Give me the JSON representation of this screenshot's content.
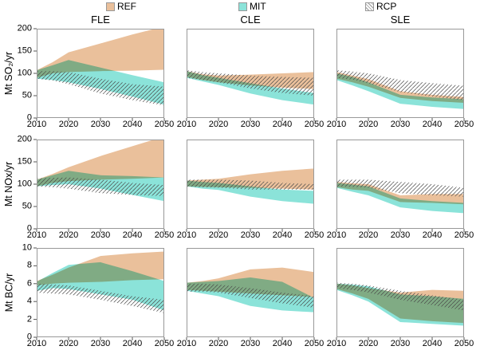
{
  "legend": [
    {
      "label": "REF",
      "swatch": "ref-filled-tan"
    },
    {
      "label": "MIT",
      "swatch": "mit-filled-cyan"
    },
    {
      "label": "RCP",
      "swatch": "rcp-hatched"
    }
  ],
  "columns": [
    "FLE",
    "CLE",
    "SLE"
  ],
  "rows": [
    {
      "ylabel": "Mt SO₂/yr",
      "ylim": [
        0,
        200
      ],
      "yticks": [
        0,
        50,
        100,
        150,
        200
      ]
    },
    {
      "ylabel": "Mt NOx/yr",
      "ylim": [
        0,
        200
      ],
      "yticks": [
        0,
        50,
        100,
        150,
        200
      ]
    },
    {
      "ylabel": "Mt BC/yr",
      "ylim": [
        0,
        10
      ],
      "yticks": [
        0,
        2,
        4,
        6,
        8,
        10
      ]
    }
  ],
  "xticks": [
    2010,
    2020,
    2030,
    2040,
    2050
  ],
  "colors": {
    "ref": "#EAC09B",
    "mit": "#8BE3D9",
    "overlap_appearance": "#7CBFA0",
    "hatch_line": "#4a4a4a",
    "panel_border": "#999999",
    "tick": "#555555"
  },
  "chart_data": [
    {
      "id": "so2-fle",
      "type": "area",
      "row_label": "Mt SO₂/yr",
      "column": "FLE",
      "ylim": [
        0,
        200
      ],
      "x": [
        2010,
        2015,
        2020,
        2030,
        2040,
        2050
      ],
      "bands": [
        {
          "name": "REF",
          "upper": [
            107,
            125,
            147,
            167,
            187,
            205
          ],
          "lower": [
            90,
            100,
            103,
            105,
            106,
            108
          ]
        },
        {
          "name": "MIT",
          "upper": [
            107,
            118,
            130,
            113,
            96,
            80
          ],
          "lower": [
            88,
            85,
            80,
            65,
            48,
            30
          ]
        },
        {
          "name": "RCP",
          "upper": [
            105,
            105,
            103,
            88,
            76,
            70
          ],
          "lower": [
            88,
            84,
            76,
            55,
            40,
            28
          ]
        }
      ]
    },
    {
      "id": "so2-cle",
      "type": "area",
      "row_label": "Mt SO₂/yr",
      "column": "CLE",
      "ylim": [
        0,
        200
      ],
      "x": [
        2010,
        2015,
        2020,
        2030,
        2040,
        2050
      ],
      "bands": [
        {
          "name": "REF",
          "upper": [
            105,
            98,
            95,
            97,
            100,
            103
          ],
          "lower": [
            92,
            85,
            80,
            73,
            68,
            65
          ]
        },
        {
          "name": "MIT",
          "upper": [
            105,
            96,
            90,
            78,
            66,
            56
          ],
          "lower": [
            90,
            82,
            74,
            55,
            40,
            30
          ]
        },
        {
          "name": "RCP",
          "upper": [
            107,
            103,
            100,
            95,
            92,
            90
          ],
          "lower": [
            90,
            85,
            80,
            66,
            56,
            50
          ]
        }
      ]
    },
    {
      "id": "so2-sle",
      "type": "area",
      "row_label": "Mt SO₂/yr",
      "column": "SLE",
      "ylim": [
        0,
        200
      ],
      "x": [
        2010,
        2015,
        2020,
        2030,
        2040,
        2050
      ],
      "bands": [
        {
          "name": "REF",
          "upper": [
            103,
            95,
            87,
            60,
            52,
            47
          ],
          "lower": [
            88,
            80,
            70,
            45,
            38,
            34
          ]
        },
        {
          "name": "MIT",
          "upper": [
            100,
            92,
            80,
            52,
            46,
            42
          ],
          "lower": [
            85,
            73,
            60,
            32,
            25,
            20
          ]
        },
        {
          "name": "RCP",
          "upper": [
            107,
            104,
            100,
            85,
            78,
            72
          ],
          "lower": [
            90,
            86,
            78,
            58,
            48,
            40
          ]
        }
      ]
    },
    {
      "id": "nox-fle",
      "type": "area",
      "row_label": "Mt NOx/yr",
      "column": "FLE",
      "ylim": [
        0,
        200
      ],
      "x": [
        2010,
        2015,
        2020,
        2030,
        2040,
        2050
      ],
      "bands": [
        {
          "name": "REF",
          "upper": [
            110,
            123,
            138,
            163,
            185,
            207
          ],
          "lower": [
            95,
            103,
            107,
            110,
            112,
            115
          ]
        },
        {
          "name": "MIT",
          "upper": [
            110,
            120,
            130,
            120,
            118,
            115
          ],
          "lower": [
            95,
            98,
            100,
            90,
            76,
            62
          ]
        },
        {
          "name": "RCP",
          "upper": [
            113,
            114,
            115,
            110,
            103,
            98
          ],
          "lower": [
            95,
            93,
            90,
            80,
            76,
            73
          ]
        }
      ]
    },
    {
      "id": "nox-cle",
      "type": "area",
      "row_label": "Mt NOx/yr",
      "column": "CLE",
      "ylim": [
        0,
        200
      ],
      "x": [
        2010,
        2015,
        2020,
        2030,
        2040,
        2050
      ],
      "bands": [
        {
          "name": "REF",
          "upper": [
            108,
            110,
            112,
            122,
            130,
            135
          ],
          "lower": [
            95,
            94,
            93,
            92,
            90,
            88
          ]
        },
        {
          "name": "MIT",
          "upper": [
            108,
            105,
            103,
            95,
            88,
            85
          ],
          "lower": [
            95,
            90,
            87,
            72,
            62,
            56
          ]
        },
        {
          "name": "RCP",
          "upper": [
            110,
            110,
            110,
            108,
            103,
            100
          ],
          "lower": [
            95,
            93,
            92,
            88,
            88,
            88
          ]
        }
      ]
    },
    {
      "id": "nox-sle",
      "type": "area",
      "row_label": "Mt NOx/yr",
      "column": "SLE",
      "ylim": [
        0,
        200
      ],
      "x": [
        2010,
        2015,
        2020,
        2030,
        2040,
        2050
      ],
      "bands": [
        {
          "name": "REF",
          "upper": [
            105,
            102,
            100,
            75,
            78,
            78
          ],
          "lower": [
            93,
            88,
            85,
            60,
            58,
            55
          ]
        },
        {
          "name": "MIT",
          "upper": [
            103,
            99,
            95,
            68,
            62,
            58
          ],
          "lower": [
            92,
            83,
            75,
            48,
            40,
            35
          ]
        },
        {
          "name": "RCP",
          "upper": [
            110,
            110,
            110,
            105,
            100,
            92
          ],
          "lower": [
            95,
            94,
            92,
            80,
            75,
            72
          ]
        }
      ]
    },
    {
      "id": "bc-fle",
      "type": "area",
      "row_label": "Mt BC/yr",
      "column": "FLE",
      "ylim": [
        0,
        10
      ],
      "x": [
        2010,
        2015,
        2020,
        2030,
        2040,
        2050
      ],
      "bands": [
        {
          "name": "REF",
          "upper": [
            6.3,
            7.0,
            7.8,
            9.1,
            9.4,
            9.6
          ],
          "lower": [
            5.8,
            6.0,
            6.1,
            6.2,
            6.4,
            6.5
          ]
        },
        {
          "name": "MIT",
          "upper": [
            6.2,
            7.2,
            8.1,
            8.4,
            7.4,
            6.3
          ],
          "lower": [
            5.2,
            5.5,
            5.4,
            4.8,
            4.2,
            3.0
          ]
        },
        {
          "name": "RCP",
          "upper": [
            6.0,
            5.9,
            5.8,
            5.2,
            4.6,
            4.2
          ],
          "lower": [
            5.0,
            4.9,
            4.8,
            4.2,
            3.5,
            2.7
          ]
        }
      ]
    },
    {
      "id": "bc-cle",
      "type": "area",
      "row_label": "Mt BC/yr",
      "column": "CLE",
      "ylim": [
        0,
        10
      ],
      "x": [
        2010,
        2015,
        2020,
        2030,
        2040,
        2050
      ],
      "bands": [
        {
          "name": "REF",
          "upper": [
            6.1,
            6.3,
            6.6,
            7.6,
            7.8,
            7.3
          ],
          "lower": [
            5.3,
            5.2,
            5.1,
            4.9,
            4.7,
            4.5
          ]
        },
        {
          "name": "MIT",
          "upper": [
            6.1,
            6.2,
            6.3,
            6.7,
            6.2,
            4.4
          ],
          "lower": [
            5.2,
            4.9,
            4.6,
            3.5,
            3.0,
            2.8
          ]
        },
        {
          "name": "RCP",
          "upper": [
            6.0,
            6.0,
            5.9,
            5.5,
            5.0,
            4.6
          ],
          "lower": [
            5.1,
            5.1,
            5.0,
            4.4,
            3.8,
            3.3
          ]
        }
      ]
    },
    {
      "id": "bc-sle",
      "type": "area",
      "row_label": "Mt BC/yr",
      "column": "SLE",
      "ylim": [
        0,
        10
      ],
      "x": [
        2010,
        2015,
        2020,
        2030,
        2040,
        2050
      ],
      "bands": [
        {
          "name": "REF",
          "upper": [
            6.0,
            5.8,
            5.5,
            5.0,
            5.3,
            5.2
          ],
          "lower": [
            5.4,
            4.9,
            4.3,
            2.1,
            1.8,
            1.6
          ]
        },
        {
          "name": "MIT",
          "upper": [
            6.0,
            5.9,
            5.7,
            4.8,
            4.6,
            4.3
          ],
          "lower": [
            5.3,
            4.7,
            4.0,
            1.7,
            1.5,
            1.3
          ]
        },
        {
          "name": "RCP",
          "upper": [
            6.1,
            6.0,
            5.8,
            5.2,
            4.7,
            4.2
          ],
          "lower": [
            5.5,
            5.3,
            5.0,
            4.2,
            3.6,
            3.0
          ]
        }
      ]
    }
  ]
}
